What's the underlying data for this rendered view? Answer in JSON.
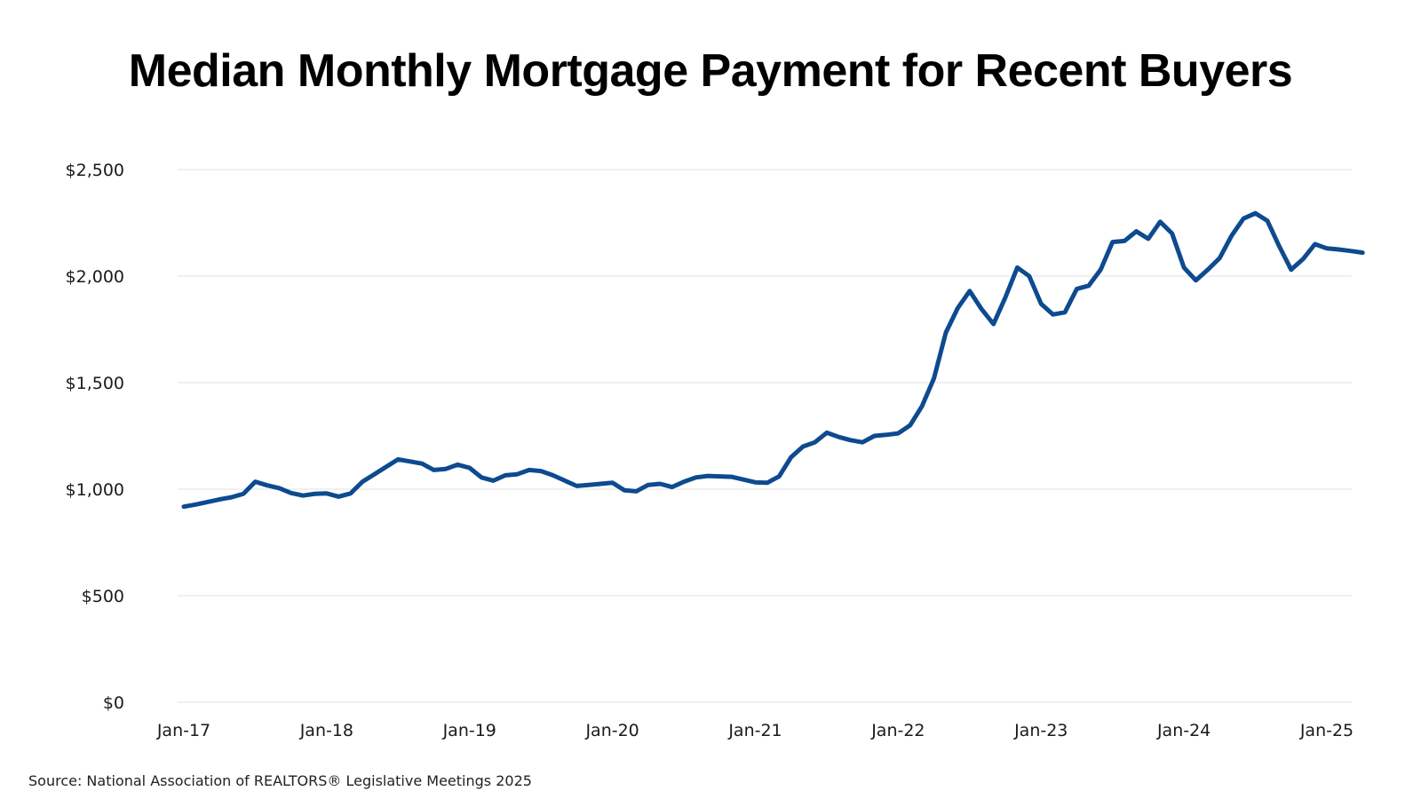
{
  "title": "Median Monthly Mortgage Payment for Recent Buyers",
  "source": "Source: National Association of REALTORS® Legislative Meetings 2025",
  "colors": {
    "line": "#0d4a8f",
    "grid": "#e2e2e2",
    "text": "#1a1a1a"
  },
  "chart_data": {
    "type": "line",
    "title": "Median Monthly Mortgage Payment for Recent Buyers",
    "xlabel": "",
    "ylabel": "",
    "ylim": [
      0,
      2500
    ],
    "grid": true,
    "legend": "none",
    "y_ticks": [
      {
        "value": 0,
        "label": "$0"
      },
      {
        "value": 500,
        "label": "$500"
      },
      {
        "value": 1000,
        "label": "$1,000"
      },
      {
        "value": 1500,
        "label": "$1,500"
      },
      {
        "value": 2000,
        "label": "$2,000"
      },
      {
        "value": 2500,
        "label": "$2,500"
      }
    ],
    "x_ticks": [
      "Jan-17",
      "Jan-18",
      "Jan-19",
      "Jan-20",
      "Jan-21",
      "Jan-22",
      "Jan-23",
      "Jan-24",
      "Jan-25"
    ],
    "x_start": "Jan-17",
    "x_end": "Jan-25",
    "series": [
      {
        "values": [
          918,
          928,
          940,
          952,
          962,
          978,
          1035,
          1018,
          1005,
          982,
          970,
          978,
          980,
          965,
          980,
          1035,
          1070,
          1105,
          1140,
          1130,
          1120,
          1090,
          1095,
          1115,
          1100,
          1055,
          1040,
          1065,
          1070,
          1090,
          1085,
          1065,
          1040,
          1015,
          1020,
          1025,
          1030,
          995,
          990,
          1020,
          1025,
          1010,
          1035,
          1055,
          1062,
          1060,
          1058,
          1045,
          1032,
          1030,
          1060,
          1150,
          1200,
          1220,
          1265,
          1245,
          1230,
          1220,
          1250,
          1255,
          1262,
          1300,
          1390,
          1520,
          1735,
          1850,
          1930,
          1845,
          1775,
          1900,
          2040,
          2000,
          1870,
          1820,
          1830,
          1940,
          1955,
          2030,
          2160,
          2165,
          2210,
          2175,
          2255,
          2200,
          2040,
          1980,
          2030,
          2085,
          2190,
          2270,
          2295,
          2260,
          2140,
          2030,
          2080,
          2150,
          2130,
          2125,
          2118,
          2110
        ]
      }
    ]
  }
}
